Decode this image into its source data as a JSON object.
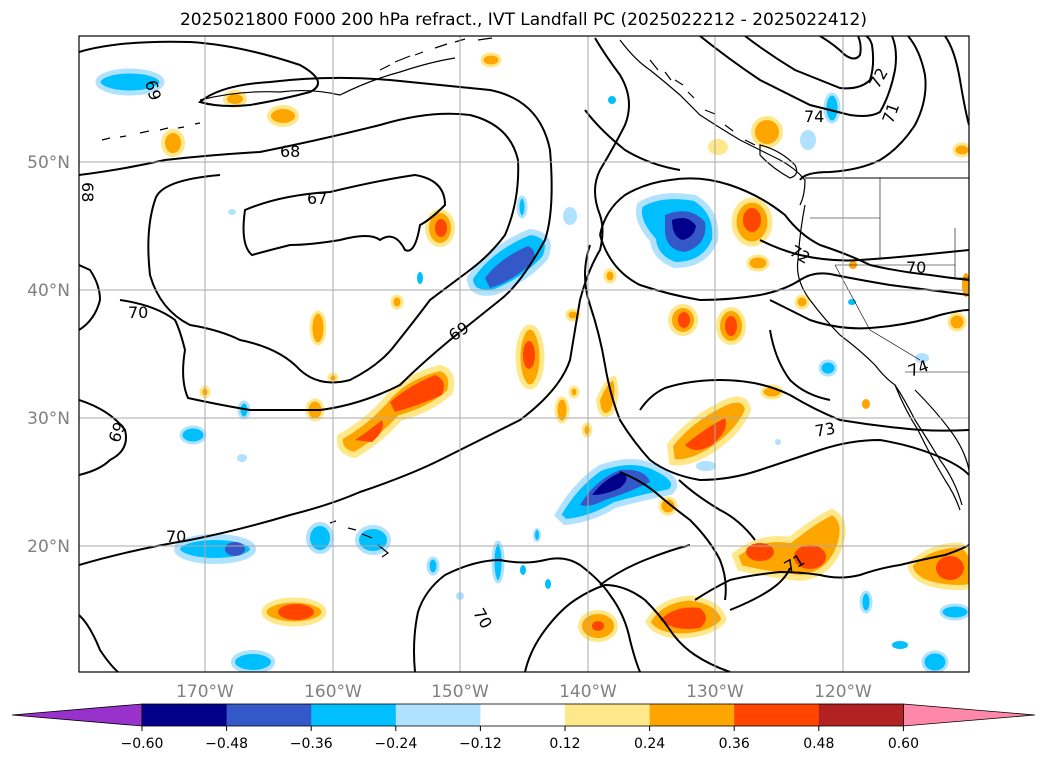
{
  "title": "2025021800 F000 200 hPa refract., IVT Landfall PC (2025022212 - 2025022412)",
  "map": {
    "lon_labels": [
      "170°W",
      "160°W",
      "150°W",
      "140°W",
      "130°W",
      "120°W"
    ],
    "lat_labels": [
      "50°N",
      "40°N",
      "30°N",
      "20°N"
    ],
    "contour_labels": [
      "69",
      "68",
      "67",
      "68",
      "70",
      "69",
      "69",
      "70",
      "70",
      "72",
      "71",
      "74",
      "72",
      "70",
      "73",
      "71",
      "74"
    ]
  },
  "colorbar": {
    "ticks": [
      "−0.60",
      "−0.48",
      "−0.36",
      "−0.24",
      "−0.12",
      "0.12",
      "0.24",
      "0.36",
      "0.48",
      "0.60"
    ],
    "colors": [
      "#9932cc",
      "#00008b",
      "#3558c8",
      "#00bfff",
      "#b0e2ff",
      "#ffffff",
      "#ffe88a",
      "#ffa500",
      "#ff4500",
      "#b22222",
      "#ff88aa"
    ]
  }
}
